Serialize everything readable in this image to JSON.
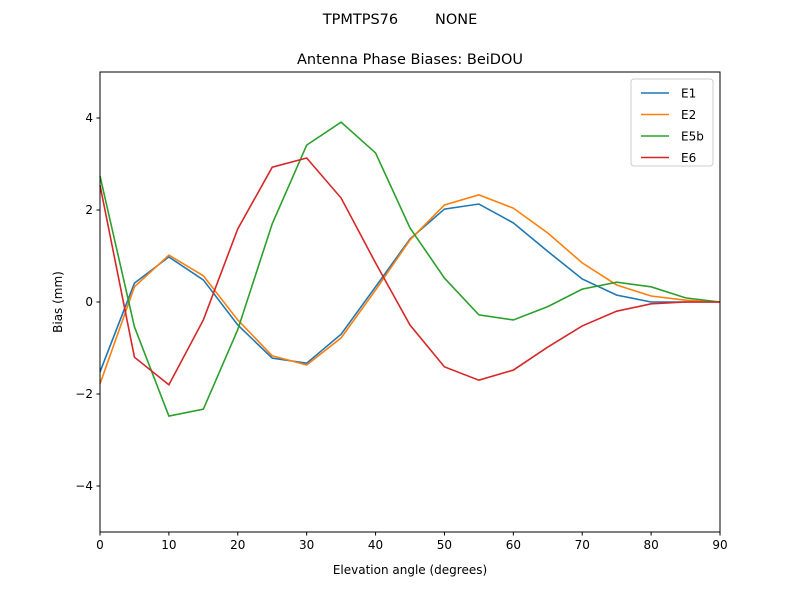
{
  "figure_title": "TPMTPS76        NONE",
  "chart_data": {
    "type": "line",
    "title": "Antenna Phase Biases: BeiDOU",
    "xlabel": "Elevation angle (degrees)",
    "ylabel": "Bias (mm)",
    "xlim": [
      0,
      90
    ],
    "ylim": [
      -5,
      5
    ],
    "xticks": [
      0,
      10,
      20,
      30,
      40,
      50,
      60,
      70,
      80,
      90
    ],
    "yticks": [
      -4,
      -2,
      0,
      2,
      4
    ],
    "grid": false,
    "legend_position": "top-right",
    "x": [
      0,
      5,
      10,
      15,
      20,
      25,
      30,
      35,
      40,
      45,
      50,
      55,
      60,
      65,
      70,
      75,
      80,
      85,
      90
    ],
    "series": [
      {
        "name": "E1",
        "color": "#1f77b4",
        "values": [
          -1.52,
          0.41,
          0.98,
          0.48,
          -0.5,
          -1.22,
          -1.33,
          -0.7,
          0.33,
          1.37,
          2.02,
          2.13,
          1.72,
          1.1,
          0.5,
          0.15,
          0.0,
          0.0,
          0.0
        ]
      },
      {
        "name": "E2",
        "color": "#ff7f0e",
        "values": [
          -1.78,
          0.33,
          1.02,
          0.57,
          -0.39,
          -1.17,
          -1.37,
          -0.78,
          0.26,
          1.35,
          2.11,
          2.33,
          2.04,
          1.5,
          0.85,
          0.37,
          0.13,
          0.04,
          0.0
        ]
      },
      {
        "name": "E5b",
        "color": "#2ca02c",
        "values": [
          2.74,
          -0.54,
          -2.48,
          -2.33,
          -0.6,
          1.7,
          3.41,
          3.91,
          3.24,
          1.61,
          0.52,
          -0.28,
          -0.39,
          -0.1,
          0.28,
          0.43,
          0.33,
          0.09,
          0.0
        ]
      },
      {
        "name": "E6",
        "color": "#d62728",
        "values": [
          2.54,
          -1.2,
          -1.8,
          -0.39,
          1.59,
          2.93,
          3.13,
          2.26,
          0.85,
          -0.5,
          -1.41,
          -1.7,
          -1.48,
          -0.98,
          -0.52,
          -0.2,
          -0.04,
          0.0,
          0.0
        ]
      }
    ]
  }
}
